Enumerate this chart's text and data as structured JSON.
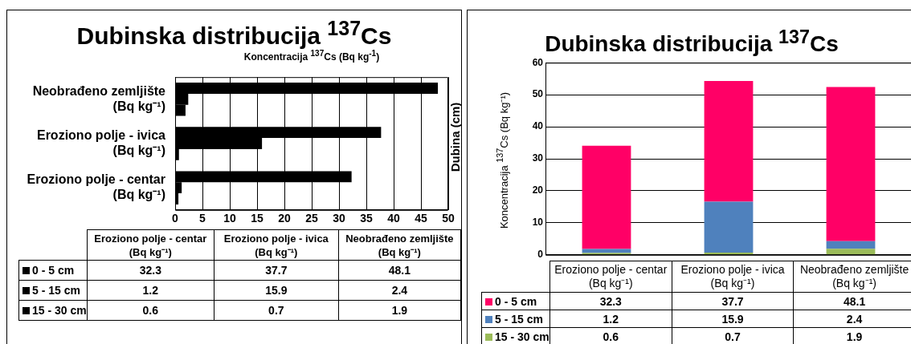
{
  "chart_data": [
    {
      "type": "bar",
      "orientation": "horizontal",
      "title": "Dubinska distribucija $^{137}$Cs",
      "xlabel": "Koncentracija $^{137}$Cs (Bq kg$^{-1}$)",
      "ylabel": "Dubina (cm)",
      "categories": [
        "Neobrađeno zemljište\n(Bq kg⁻¹)",
        "Eroziono polje - ivica\n(Bq kg⁻¹)",
        "Eroziono polje - centar\n(Bq kg⁻¹)"
      ],
      "series": [
        {
          "name": "0 - 5 cm",
          "color": "#000000",
          "values": [
            48.1,
            37.7,
            32.3
          ]
        },
        {
          "name": "5 - 15 cm",
          "color": "#000000",
          "values": [
            2.4,
            15.9,
            1.2
          ]
        },
        {
          "name": "15 - 30 cm",
          "color": "#000000",
          "values": [
            1.9,
            0.7,
            0.6
          ]
        }
      ],
      "xlim": [
        0,
        50
      ],
      "xticks": [
        0,
        5,
        10,
        15,
        20,
        25,
        30,
        35,
        40,
        45,
        50
      ],
      "grid": "x",
      "legend": "bottom",
      "annotations": [
        "32.3",
        "37.7",
        "48.1",
        "1.2",
        "15.9",
        "2.4",
        "0.6",
        "0.7",
        "1.9"
      ]
    },
    {
      "type": "bar",
      "stacked": true,
      "title": "Dubinska distribucija $^{137}$Cs",
      "ylabel": "Koncentracija $^{137}$Cs (Bq kg⁻¹)",
      "categories": [
        "Eroziono polje - centar\n(Bq kg⁻¹)",
        "Eroziono polje - ivica\n(Bq kg⁻¹)",
        "Neobrađeno zemljište\n(Bq kg⁻¹)"
      ],
      "series": [
        {
          "name": "15 - 30 cm",
          "color": "#9bbb59",
          "values": [
            0.6,
            0.7,
            1.9
          ]
        },
        {
          "name": "5 - 15 cm",
          "color": "#4f81bd",
          "values": [
            1.2,
            15.9,
            2.4
          ]
        },
        {
          "name": "0 - 5 cm",
          "color": "#ff0066",
          "values": [
            32.3,
            37.7,
            48.1
          ]
        }
      ],
      "ylim": [
        0,
        60
      ],
      "yticks": [
        0,
        10,
        20,
        30,
        40,
        50,
        60
      ],
      "grid": "y",
      "legend": "bottom",
      "data_labels": true
    }
  ]
}
